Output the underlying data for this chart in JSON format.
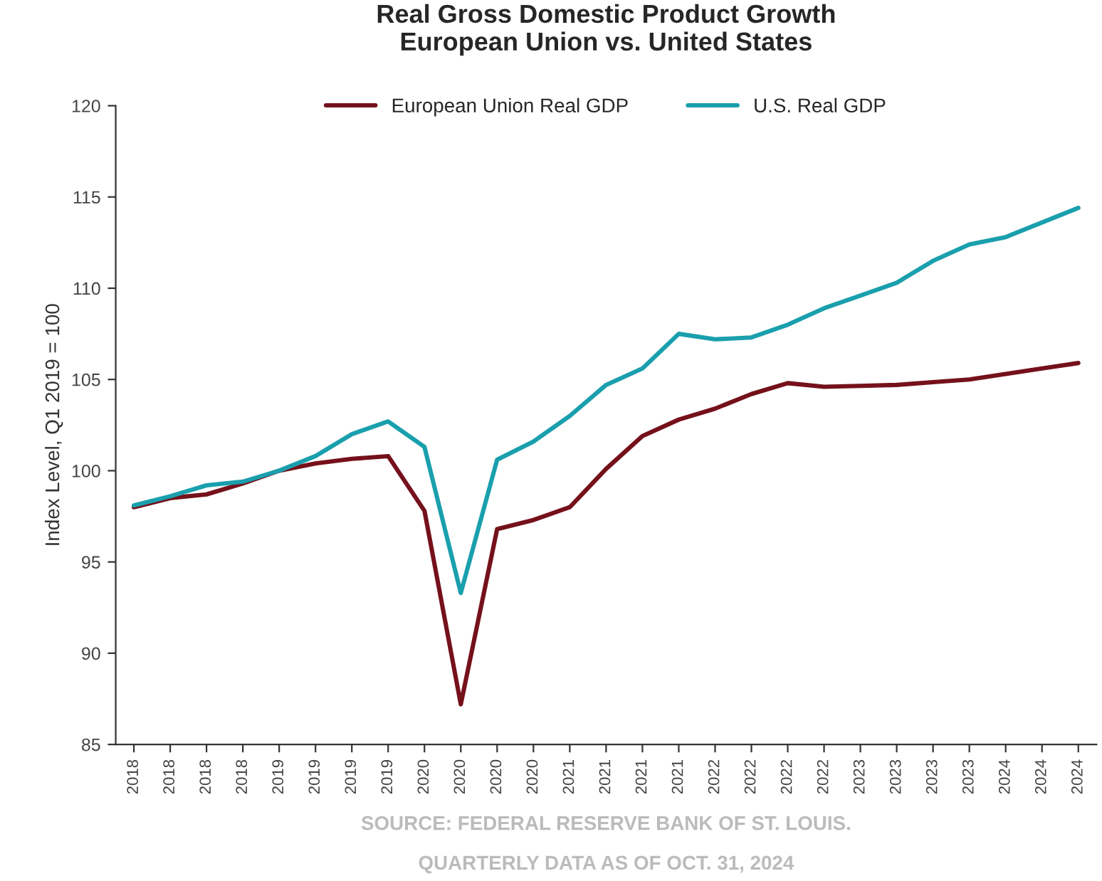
{
  "chart_data": {
    "type": "line",
    "title": "Real Gross Domestic Product Growth\nEuropean Union vs. United States",
    "ylabel": "Index Level, Q1 2019 = 100",
    "categories": [
      "2018",
      "2018",
      "2018",
      "2018",
      "2019",
      "2019",
      "2019",
      "2019",
      "2020",
      "2020",
      "2020",
      "2020",
      "2021",
      "2021",
      "2021",
      "2021",
      "2022",
      "2022",
      "2022",
      "2022",
      "2023",
      "2023",
      "2023",
      "2023",
      "2024",
      "2024",
      "2024"
    ],
    "series": [
      {
        "name": "European Union Real GDP",
        "color": "#75111b",
        "values": [
          98.0,
          98.5,
          98.7,
          99.3,
          100.0,
          100.4,
          100.65,
          100.8,
          97.8,
          87.2,
          96.8,
          97.3,
          98.0,
          100.1,
          101.9,
          102.8,
          103.4,
          104.2,
          104.8,
          104.6,
          104.65,
          104.7,
          104.85,
          105.0,
          105.3,
          105.6,
          105.9
        ]
      },
      {
        "name": "U.S. Real GDP",
        "color": "#1a9fad",
        "values": [
          98.1,
          98.6,
          99.2,
          99.4,
          100.0,
          100.8,
          102.0,
          102.7,
          101.3,
          93.3,
          100.6,
          101.6,
          103.0,
          104.7,
          105.6,
          107.5,
          107.2,
          107.3,
          108.0,
          108.9,
          109.6,
          110.3,
          111.5,
          112.4,
          112.8,
          113.6,
          114.4
        ]
      }
    ],
    "ylim": [
      85,
      120
    ],
    "yticks": [
      85,
      90,
      95,
      100,
      105,
      110,
      115,
      120
    ],
    "grid": false,
    "legend": "top",
    "marker": "none",
    "line_style": "solid",
    "annotations": [
      "SOURCE: FEDERAL RESERVE BANK OF ST. LOUIS.",
      "QUARTERLY DATA AS OF OCT. 31, 2024"
    ]
  }
}
